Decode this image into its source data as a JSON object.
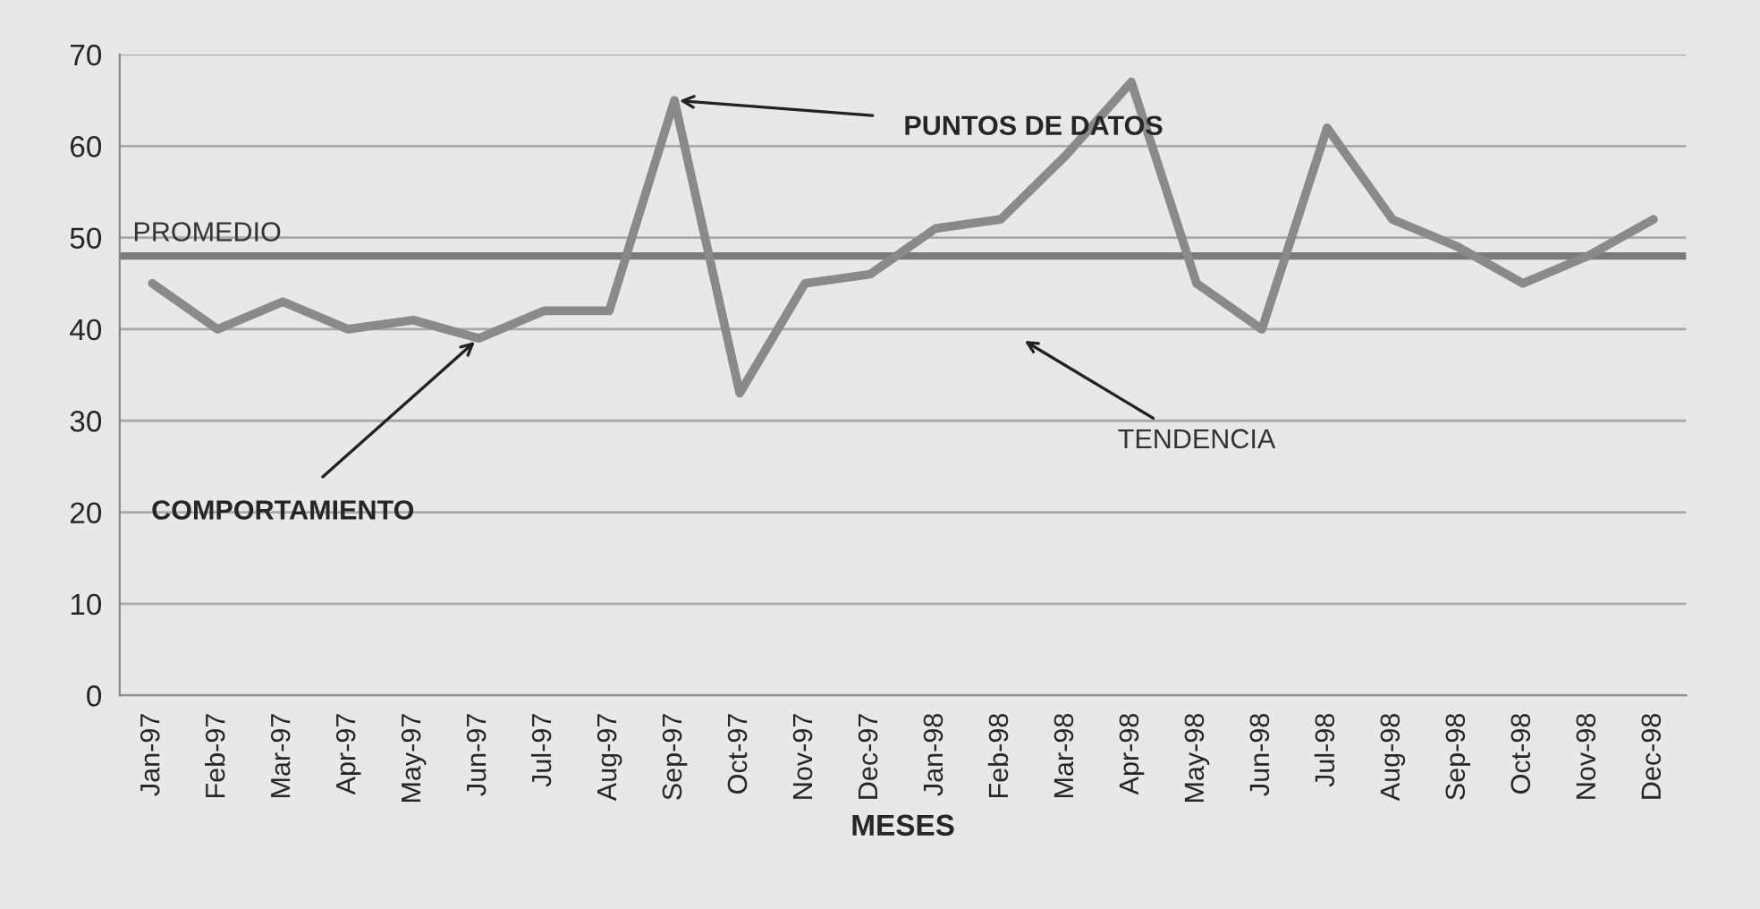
{
  "chart_data": {
    "type": "line",
    "xlabel": "MESES",
    "categories": [
      "Jan-97",
      "Feb-97",
      "Mar-97",
      "Apr-97",
      "May-97",
      "Jun-97",
      "Jul-97",
      "Aug-97",
      "Sep-97",
      "Oct-97",
      "Nov-97",
      "Dec-97",
      "Jan-98",
      "Feb-98",
      "Mar-98",
      "Apr-98",
      "May-98",
      "Jun-98",
      "Jul-98",
      "Aug-98",
      "Sep-98",
      "Oct-98",
      "Nov-98",
      "Dec-98"
    ],
    "series": [
      {
        "color": "#8a8a8a",
        "values": [
          45,
          40,
          43,
          40,
          41,
          39,
          42,
          42,
          65,
          33,
          45,
          46,
          51,
          52,
          59,
          67,
          45,
          40,
          62,
          52,
          49,
          45,
          48,
          52
        ]
      }
    ],
    "ref_lines": [
      {
        "axis": "y",
        "value": 48,
        "label": "PROMEDIO",
        "color": "#7a7a7a"
      }
    ],
    "annotations": [
      {
        "text": "PUNTOS DE DATOS",
        "x": "Sep-97",
        "y": 65
      },
      {
        "text": "COMPORTAMIENTO",
        "x": "Jun-97",
        "y": 39
      },
      "TENDENCIA"
    ],
    "ylim": [
      0,
      70
    ],
    "yticks": [
      0,
      10,
      20,
      30,
      40,
      50,
      60,
      70
    ],
    "grid": "y",
    "marker": "none",
    "line_style": "solid",
    "legend": false
  }
}
